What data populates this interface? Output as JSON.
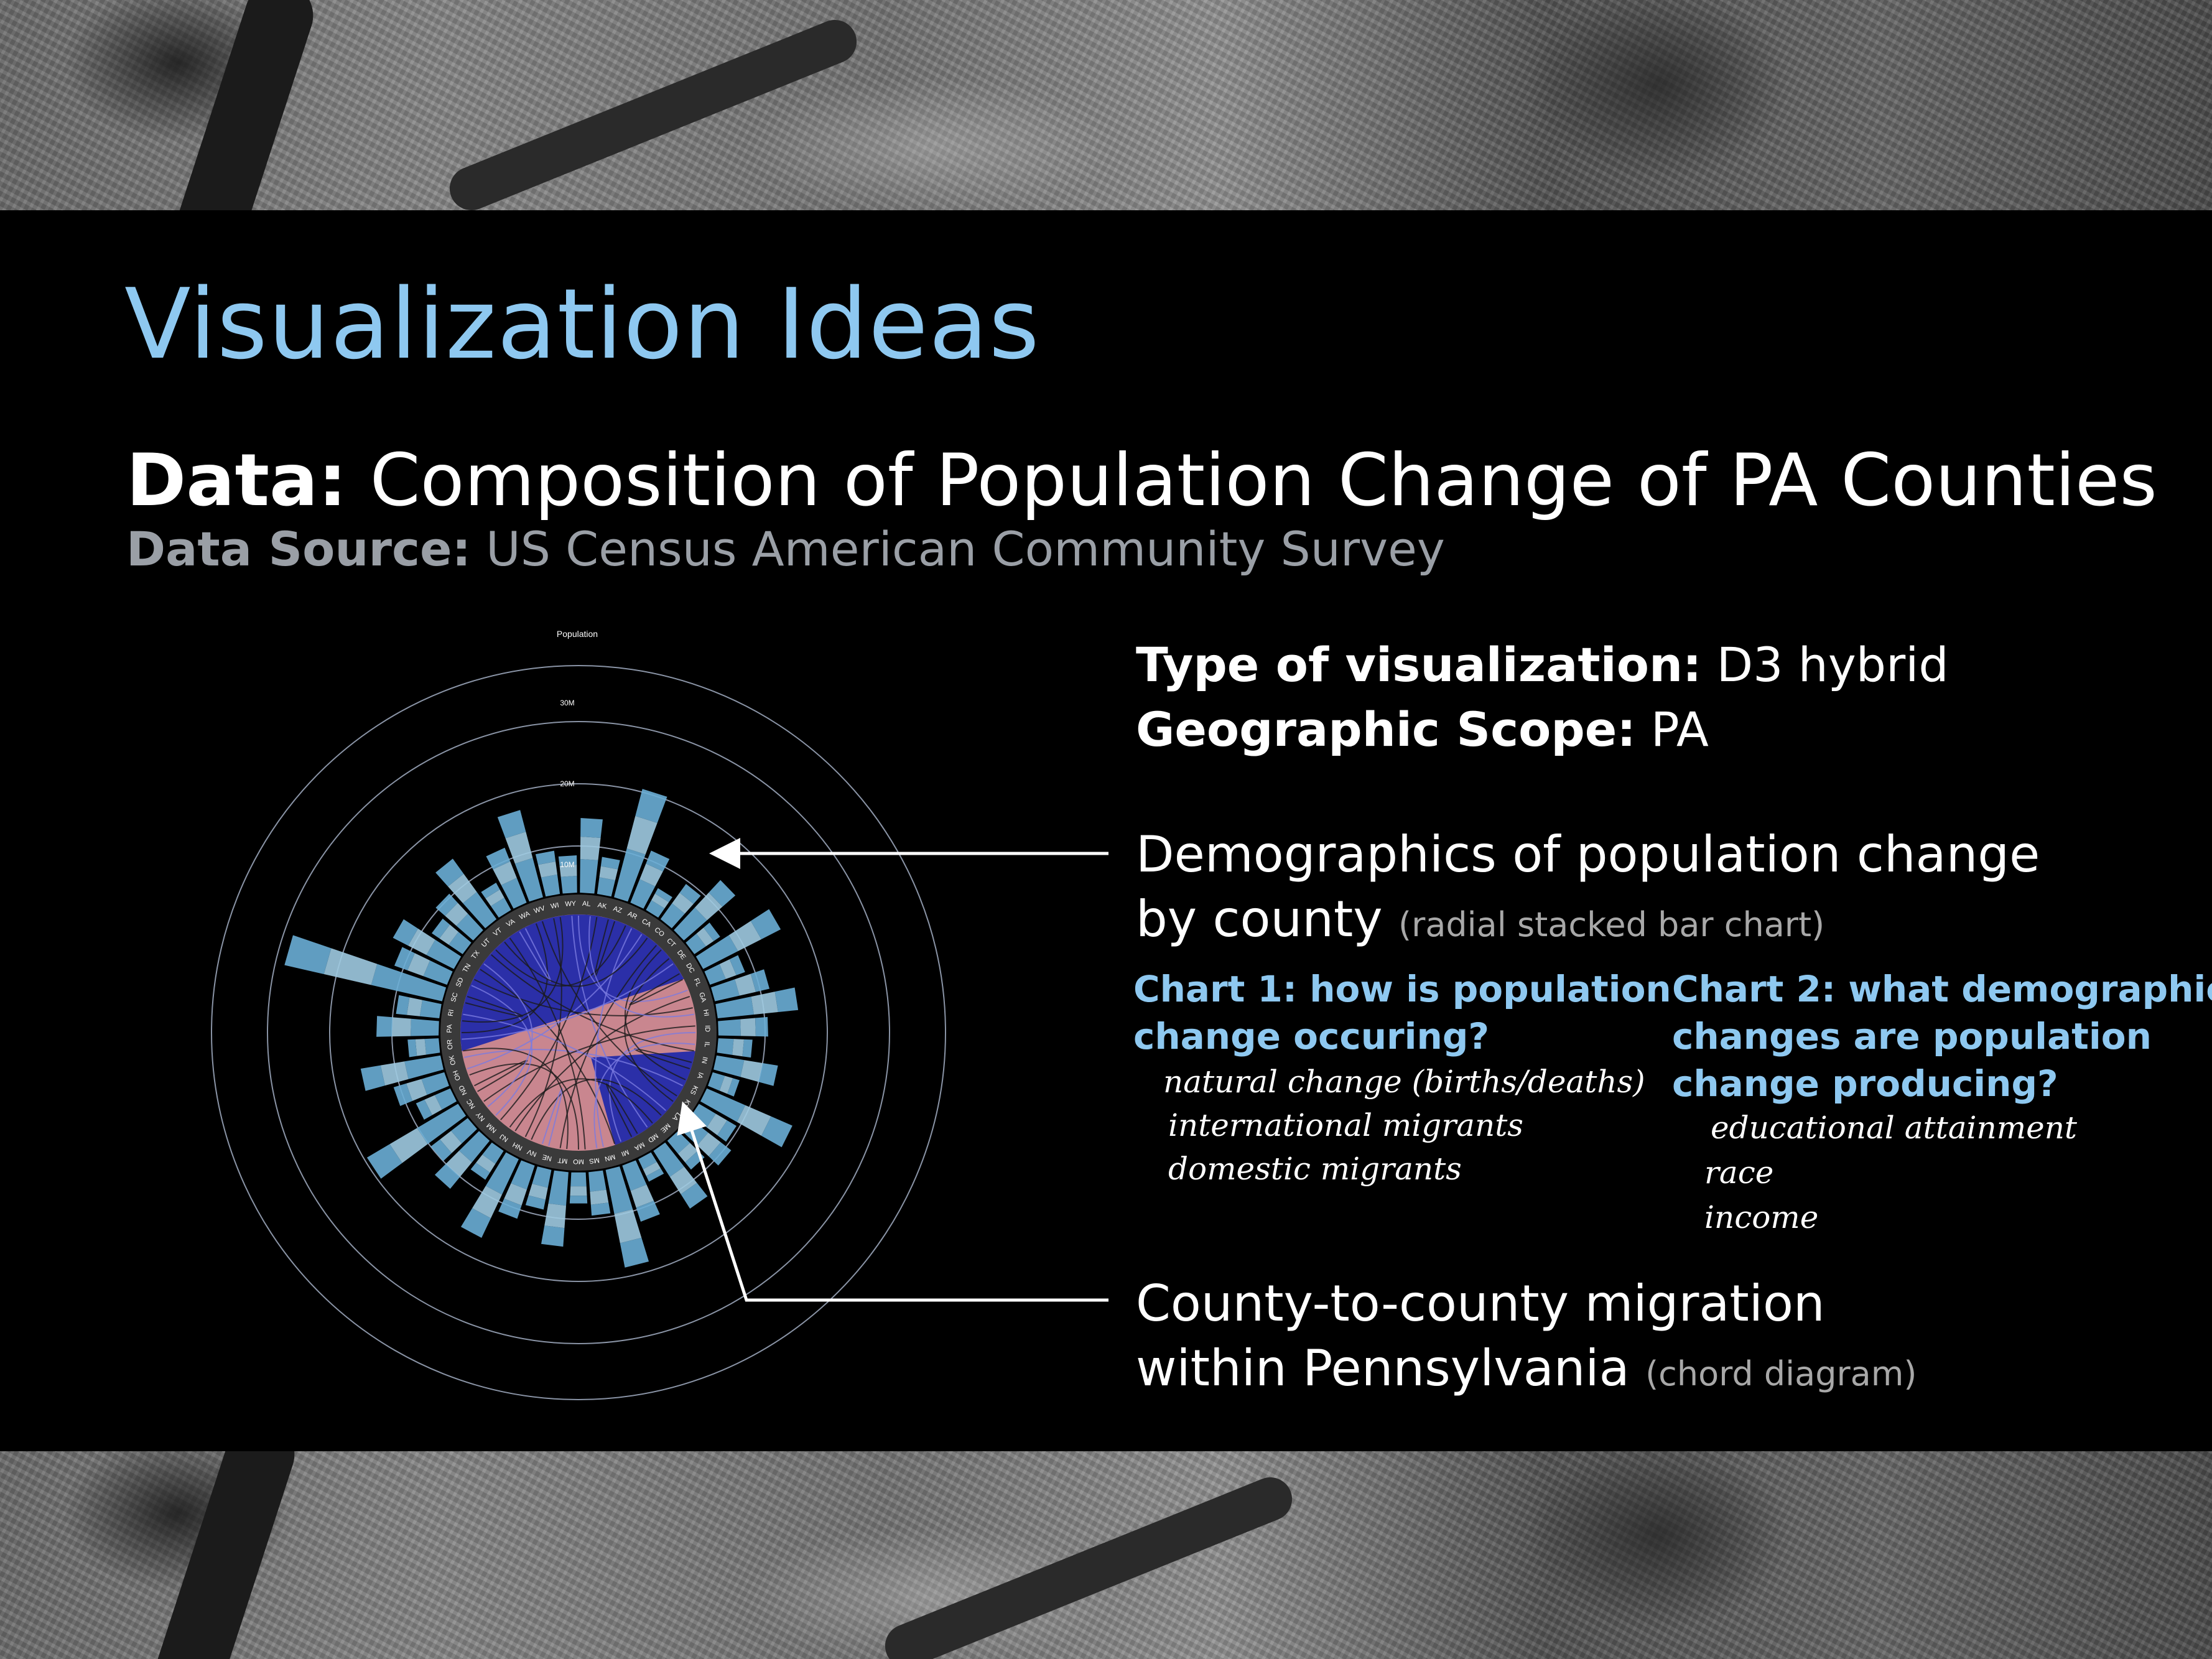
{
  "slide": {
    "title": "Visualization Ideas",
    "data_label": "Data:",
    "data_value": "Composition of Population Change of PA Counties",
    "source_label": "Data Source:",
    "source_value": "US Census American Community Survey"
  },
  "details": {
    "type_label": "Type of visualization:",
    "type_value": "D3 hybrid",
    "scope_label": "Geographic Scope:",
    "scope_value": "PA"
  },
  "callouts": {
    "demographics_line1": "Demographics of population change",
    "demographics_line2": "by county",
    "demographics_note": "(radial stacked bar chart)",
    "migration_line1": "County-to-county migration",
    "migration_line2": "within Pennsylvania",
    "migration_note": "(chord diagram)"
  },
  "chart1": {
    "heading_line1": "Chart 1: how is population",
    "heading_line2": "change occuring?",
    "items": [
      "natural change (births/deaths)",
      "international migrants",
      "domestic migrants"
    ]
  },
  "chart2": {
    "heading_line1": "Chart 2: what demographic",
    "heading_line2": "changes are population",
    "heading_line3": "change producing?",
    "items": [
      "educational attainment",
      "race",
      "income"
    ]
  },
  "radial_chart": {
    "axis_title": "Population",
    "ring_labels": [
      "10M",
      "20M",
      "30M"
    ],
    "state_labels": [
      "AL",
      "AK",
      "AZ",
      "AR",
      "CA",
      "CO",
      "CT",
      "DE",
      "DC",
      "FL",
      "GA",
      "HI",
      "ID",
      "IL",
      "IN",
      "IA",
      "KS",
      "KY",
      "LA",
      "ME",
      "MD",
      "MA",
      "MI",
      "MN",
      "MS",
      "MO",
      "MT",
      "NE",
      "NV",
      "NH",
      "NJ",
      "NM",
      "NY",
      "NC",
      "ND",
      "OH",
      "OK",
      "OR",
      "PA",
      "RI",
      "SC",
      "SD",
      "TN",
      "TX",
      "UT",
      "VT",
      "VA",
      "WA",
      "WV",
      "WI",
      "WY"
    ],
    "colors": {
      "bar": "#6aaed6",
      "bar_light": "#9ecae1",
      "chord_blue": "#2b2fa8",
      "chord_pink": "#c9868f",
      "ring": "#8a94a6",
      "arrow": "#ffffff"
    }
  }
}
